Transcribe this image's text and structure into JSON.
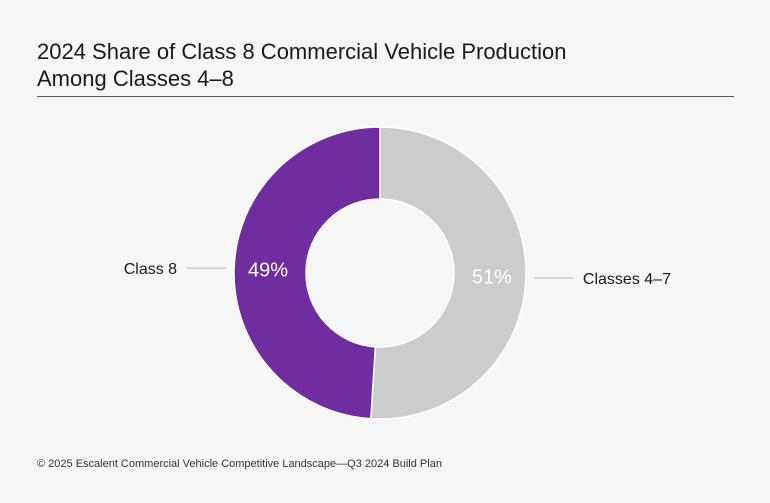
{
  "header": {
    "title_line1": "2024 Share of Class 8 Commercial Vehicle Production",
    "title_line2": "Among Classes 4–8"
  },
  "chart_data": {
    "type": "pie",
    "variant": "donut",
    "title": "2024 Share of Class 8 Commercial Vehicle Production Among Classes 4–8",
    "slices": [
      {
        "label": "Classes 4–7",
        "value": 51,
        "display": "51%",
        "color": "#cccccc",
        "value_label_color": "#ffffff"
      },
      {
        "label": "Class 8",
        "value": 49,
        "display": "49%",
        "color": "#6f2da0",
        "value_label_color": "#ffffff"
      }
    ],
    "start_angle": "12 o'clock",
    "direction": "clockwise",
    "legend": "none (leader-line labels)"
  },
  "footer": {
    "source": "© 2025 Escalent Commercial Vehicle Competitive Landscape—Q3 2024 Build Plan"
  }
}
